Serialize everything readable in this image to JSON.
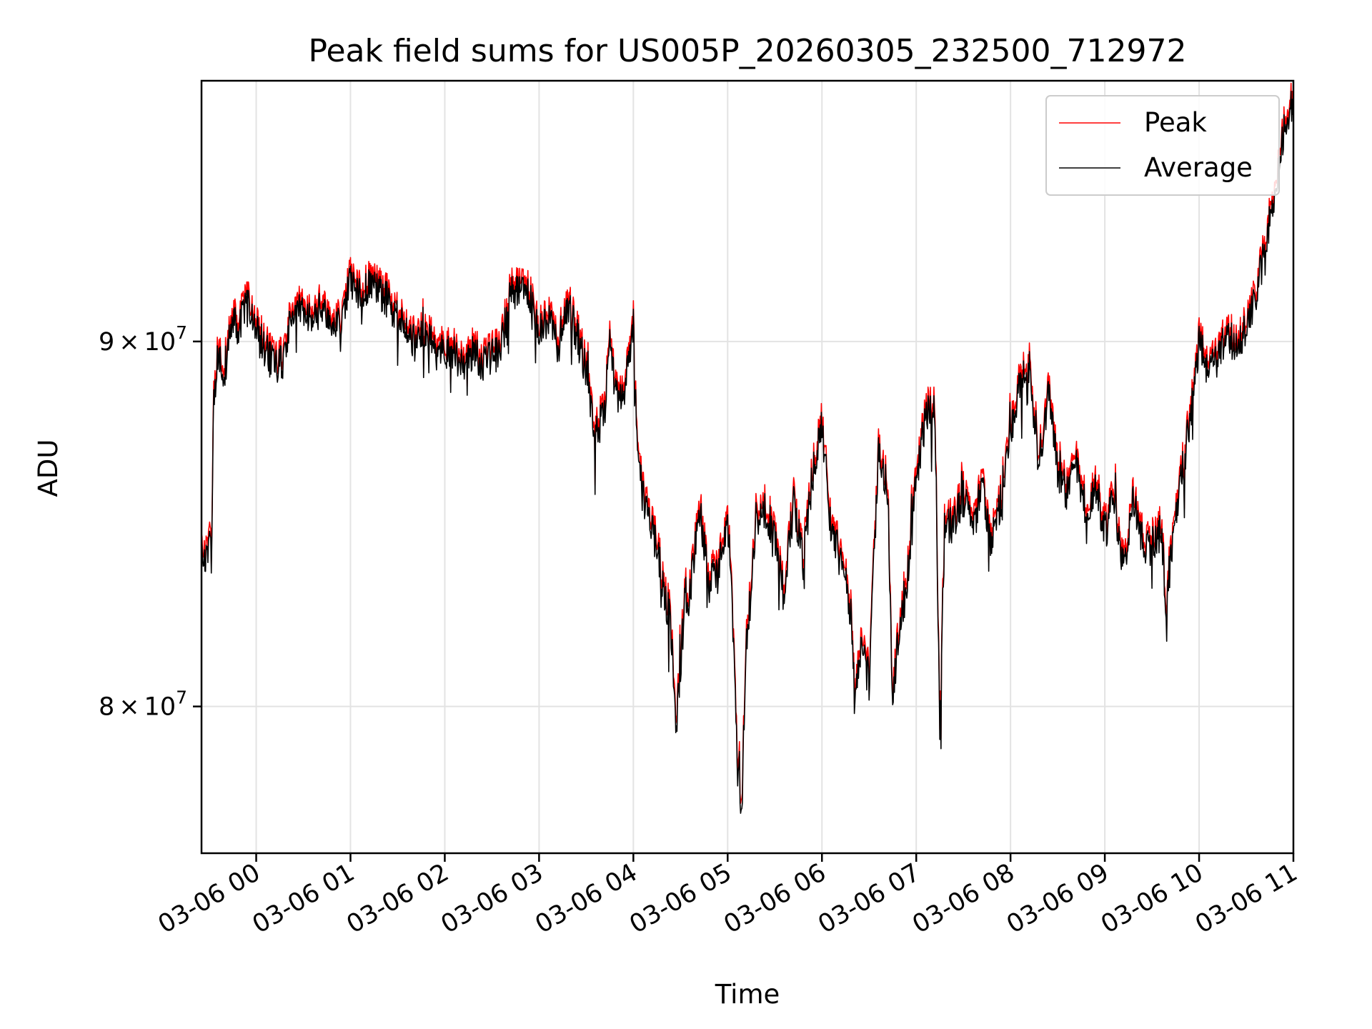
{
  "chart_data": {
    "type": "line",
    "title": "Peak field sums for US005P_20260305_232500_712972",
    "xlabel": "Time",
    "ylabel": "ADU",
    "grid": true,
    "legend_position": "top-right",
    "x_unit": "hours since 03-06 00:00",
    "xlim": [
      -0.58,
      11.0
    ],
    "ylim": [
      76300000,
      97900000
    ],
    "x_ticks": [
      {
        "value": 0,
        "label": "03-06 00"
      },
      {
        "value": 1,
        "label": "03-06 01"
      },
      {
        "value": 2,
        "label": "03-06 02"
      },
      {
        "value": 3,
        "label": "03-06 03"
      },
      {
        "value": 4,
        "label": "03-06 04"
      },
      {
        "value": 5,
        "label": "03-06 05"
      },
      {
        "value": 6,
        "label": "03-06 06"
      },
      {
        "value": 7,
        "label": "03-06 07"
      },
      {
        "value": 8,
        "label": "03-06 08"
      },
      {
        "value": 9,
        "label": "03-06 09"
      },
      {
        "value": 10,
        "label": "03-06 10"
      },
      {
        "value": 11,
        "label": "03-06 11"
      }
    ],
    "y_ticks": [
      {
        "value": 80000000,
        "mantissa": "8",
        "times": "×",
        "base": "10",
        "exp": "7"
      },
      {
        "value": 90000000,
        "mantissa": "9",
        "times": "×",
        "base": "10",
        "exp": "7"
      }
    ],
    "anchors": [
      [
        -0.58,
        84.7
      ],
      [
        -0.55,
        83.8
      ],
      [
        -0.5,
        84.3
      ],
      [
        -0.47,
        84.0
      ],
      [
        -0.45,
        88.6
      ],
      [
        -0.4,
        89.6
      ],
      [
        -0.35,
        88.8
      ],
      [
        -0.3,
        90.0
      ],
      [
        -0.25,
        90.6
      ],
      [
        -0.2,
        90.2
      ],
      [
        -0.1,
        91.2
      ],
      [
        0.0,
        90.4
      ],
      [
        0.1,
        89.7
      ],
      [
        0.2,
        89.3
      ],
      [
        0.3,
        89.4
      ],
      [
        0.35,
        90.4
      ],
      [
        0.5,
        91.0
      ],
      [
        0.6,
        90.6
      ],
      [
        0.7,
        91.0
      ],
      [
        0.8,
        90.5
      ],
      [
        0.9,
        90.6
      ],
      [
        1.0,
        91.8
      ],
      [
        1.1,
        91.4
      ],
      [
        1.2,
        91.6
      ],
      [
        1.3,
        91.5
      ],
      [
        1.4,
        91.2
      ],
      [
        1.5,
        90.7
      ],
      [
        1.6,
        90.2
      ],
      [
        1.7,
        89.9
      ],
      [
        1.8,
        90.3
      ],
      [
        1.9,
        89.7
      ],
      [
        2.0,
        89.8
      ],
      [
        2.1,
        89.6
      ],
      [
        2.2,
        89.4
      ],
      [
        2.3,
        89.7
      ],
      [
        2.4,
        89.4
      ],
      [
        2.5,
        89.6
      ],
      [
        2.6,
        89.9
      ],
      [
        2.7,
        91.4
      ],
      [
        2.8,
        91.6
      ],
      [
        2.9,
        91.3
      ],
      [
        3.0,
        90.4
      ],
      [
        3.1,
        90.7
      ],
      [
        3.2,
        89.8
      ],
      [
        3.3,
        91.1
      ],
      [
        3.4,
        90.2
      ],
      [
        3.5,
        89.1
      ],
      [
        3.6,
        87.4
      ],
      [
        3.7,
        88.0
      ],
      [
        3.75,
        90.3
      ],
      [
        3.8,
        88.6
      ],
      [
        3.9,
        88.3
      ],
      [
        4.0,
        90.4
      ],
      [
        4.05,
        86.5
      ],
      [
        4.1,
        85.6
      ],
      [
        4.2,
        84.7
      ],
      [
        4.3,
        83.5
      ],
      [
        4.4,
        82.0
      ],
      [
        4.45,
        79.5
      ],
      [
        4.5,
        81.0
      ],
      [
        4.55,
        83.0
      ],
      [
        4.6,
        82.9
      ],
      [
        4.7,
        85.4
      ],
      [
        4.8,
        83.1
      ],
      [
        4.9,
        83.8
      ],
      [
        5.0,
        85.0
      ],
      [
        5.05,
        82.6
      ],
      [
        5.1,
        78.5
      ],
      [
        5.15,
        77.5
      ],
      [
        5.2,
        81.5
      ],
      [
        5.3,
        84.9
      ],
      [
        5.4,
        85.3
      ],
      [
        5.5,
        84.3
      ],
      [
        5.6,
        82.8
      ],
      [
        5.7,
        85.5
      ],
      [
        5.8,
        83.8
      ],
      [
        5.9,
        86.2
      ],
      [
        6.0,
        87.5
      ],
      [
        6.1,
        84.7
      ],
      [
        6.2,
        83.8
      ],
      [
        6.3,
        82.6
      ],
      [
        6.35,
        80.0
      ],
      [
        6.4,
        81.5
      ],
      [
        6.5,
        80.7
      ],
      [
        6.6,
        86.9
      ],
      [
        6.7,
        85.7
      ],
      [
        6.75,
        80.0
      ],
      [
        6.8,
        81.6
      ],
      [
        6.9,
        83.3
      ],
      [
        7.0,
        86.0
      ],
      [
        7.1,
        87.9
      ],
      [
        7.2,
        88.0
      ],
      [
        7.25,
        79.2
      ],
      [
        7.3,
        84.6
      ],
      [
        7.4,
        84.9
      ],
      [
        7.5,
        85.6
      ],
      [
        7.6,
        84.5
      ],
      [
        7.7,
        86.0
      ],
      [
        7.8,
        84.3
      ],
      [
        7.9,
        85.6
      ],
      [
        8.0,
        87.4
      ],
      [
        8.1,
        88.7
      ],
      [
        8.2,
        89.3
      ],
      [
        8.3,
        86.5
      ],
      [
        8.4,
        88.5
      ],
      [
        8.5,
        86.3
      ],
      [
        8.6,
        85.7
      ],
      [
        8.7,
        86.4
      ],
      [
        8.8,
        85.2
      ],
      [
        8.9,
        85.9
      ],
      [
        9.0,
        84.6
      ],
      [
        9.1,
        85.6
      ],
      [
        9.2,
        83.5
      ],
      [
        9.3,
        85.5
      ],
      [
        9.4,
        84.5
      ],
      [
        9.5,
        84.2
      ],
      [
        9.6,
        84.7
      ],
      [
        9.65,
        82.7
      ],
      [
        9.7,
        84.0
      ],
      [
        9.8,
        85.9
      ],
      [
        9.9,
        87.7
      ],
      [
        10.0,
        89.9
      ],
      [
        10.1,
        89.2
      ],
      [
        10.2,
        89.5
      ],
      [
        10.3,
        90.2
      ],
      [
        10.4,
        89.8
      ],
      [
        10.5,
        90.4
      ],
      [
        10.6,
        91.2
      ],
      [
        10.7,
        92.8
      ],
      [
        10.8,
        94.3
      ],
      [
        10.9,
        96.3
      ],
      [
        10.95,
        96.8
      ],
      [
        11.0,
        97.4
      ]
    ],
    "series": [
      {
        "name": "Peak",
        "color": "#ff0000",
        "offset_millions": 0.25
      },
      {
        "name": "Average",
        "color": "#000000",
        "offset_millions": 0.0
      }
    ]
  }
}
